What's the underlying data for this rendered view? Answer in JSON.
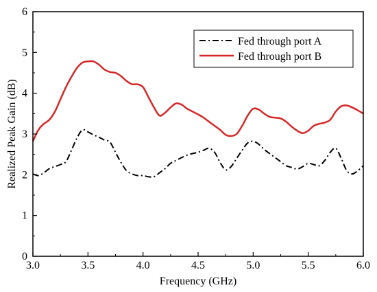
{
  "chart_data": {
    "type": "line",
    "title": "",
    "xlabel": "Frequency (GHz)",
    "ylabel": "Realized Peak Gain (dB)",
    "xlim": [
      3.0,
      6.0
    ],
    "ylim": [
      0,
      6
    ],
    "xticks": [
      3.0,
      3.5,
      4.0,
      4.5,
      5.0,
      5.5,
      6.0
    ],
    "xtick_labels": [
      "3.0",
      "3.5",
      "4.0",
      "4.5",
      "5.0",
      "5.5",
      "6.0"
    ],
    "yticks": [
      0,
      1,
      2,
      3,
      4,
      5,
      6
    ],
    "ytick_labels": [
      "0",
      "1",
      "2",
      "3",
      "4",
      "5",
      "6"
    ],
    "grid": false,
    "legend_position": "top-right",
    "series": [
      {
        "name": "Fed through port A",
        "color": "#000000",
        "line_style": "dash-dot",
        "x": [
          3.0,
          3.05,
          3.1,
          3.15,
          3.2,
          3.25,
          3.3,
          3.35,
          3.4,
          3.45,
          3.5,
          3.55,
          3.6,
          3.65,
          3.7,
          3.75,
          3.8,
          3.85,
          3.9,
          3.95,
          4.0,
          4.05,
          4.1,
          4.15,
          4.2,
          4.25,
          4.3,
          4.35,
          4.4,
          4.45,
          4.5,
          4.55,
          4.6,
          4.65,
          4.7,
          4.75,
          4.8,
          4.85,
          4.9,
          4.95,
          5.0,
          5.05,
          5.1,
          5.15,
          5.2,
          5.25,
          5.3,
          5.35,
          5.4,
          5.45,
          5.5,
          5.55,
          5.6,
          5.65,
          5.7,
          5.75,
          5.8,
          5.85,
          5.9,
          5.95,
          6.0
        ],
        "values": [
          2.02,
          1.98,
          2.05,
          2.15,
          2.2,
          2.25,
          2.32,
          2.6,
          2.9,
          3.1,
          3.05,
          2.98,
          2.92,
          2.85,
          2.8,
          2.55,
          2.3,
          2.1,
          2.02,
          1.98,
          1.98,
          1.95,
          1.95,
          2.05,
          2.15,
          2.28,
          2.35,
          2.42,
          2.48,
          2.52,
          2.55,
          2.6,
          2.65,
          2.55,
          2.3,
          2.12,
          2.2,
          2.4,
          2.6,
          2.78,
          2.82,
          2.75,
          2.62,
          2.52,
          2.42,
          2.32,
          2.22,
          2.18,
          2.14,
          2.2,
          2.28,
          2.25,
          2.22,
          2.35,
          2.55,
          2.65,
          2.4,
          2.1,
          2.02,
          2.1,
          2.22
        ]
      },
      {
        "name": "Fed through port B",
        "color": "#d62728",
        "line_style": "solid",
        "x": [
          3.0,
          3.05,
          3.1,
          3.15,
          3.2,
          3.25,
          3.3,
          3.35,
          3.4,
          3.45,
          3.5,
          3.55,
          3.6,
          3.65,
          3.7,
          3.75,
          3.8,
          3.85,
          3.9,
          3.95,
          4.0,
          4.05,
          4.1,
          4.15,
          4.2,
          4.25,
          4.3,
          4.35,
          4.4,
          4.45,
          4.5,
          4.55,
          4.6,
          4.65,
          4.7,
          4.75,
          4.8,
          4.85,
          4.9,
          4.95,
          5.0,
          5.05,
          5.1,
          5.15,
          5.2,
          5.25,
          5.3,
          5.35,
          5.4,
          5.45,
          5.5,
          5.55,
          5.6,
          5.65,
          5.7,
          5.75,
          5.8,
          5.85,
          5.9,
          5.95,
          6.0
        ],
        "values": [
          2.82,
          3.1,
          3.25,
          3.35,
          3.55,
          3.85,
          4.15,
          4.4,
          4.62,
          4.75,
          4.78,
          4.78,
          4.7,
          4.58,
          4.52,
          4.5,
          4.42,
          4.3,
          4.22,
          4.22,
          4.15,
          3.9,
          3.65,
          3.45,
          3.52,
          3.65,
          3.75,
          3.72,
          3.62,
          3.55,
          3.48,
          3.4,
          3.3,
          3.2,
          3.1,
          2.98,
          2.95,
          3.0,
          3.2,
          3.45,
          3.62,
          3.6,
          3.5,
          3.42,
          3.4,
          3.38,
          3.3,
          3.18,
          3.08,
          3.02,
          3.08,
          3.2,
          3.25,
          3.28,
          3.35,
          3.55,
          3.68,
          3.7,
          3.65,
          3.58,
          3.5
        ]
      }
    ]
  }
}
